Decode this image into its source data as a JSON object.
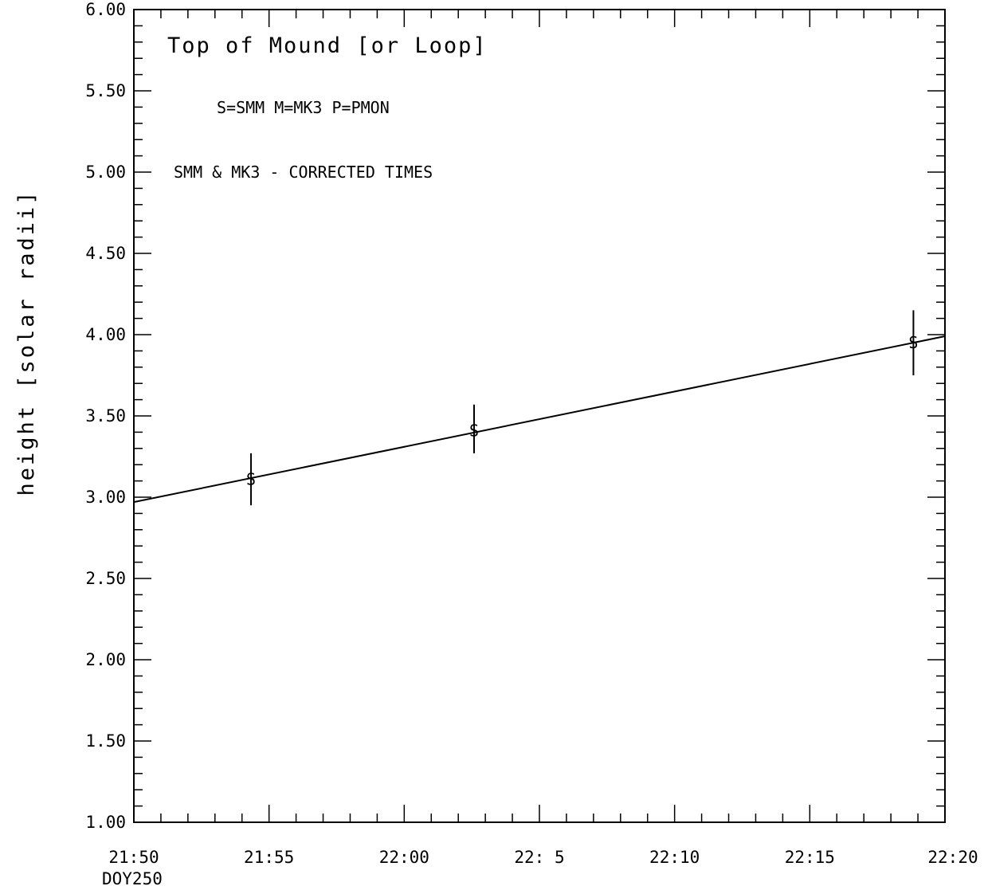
{
  "chart_data": {
    "type": "scatter",
    "title": "Top of Mound  [or Loop]",
    "annotations": [
      "S=SMM  M=MK3  P=PMON",
      "SMM & MK3 - CORRECTED TIMES"
    ],
    "xlabel": "",
    "x_sublabel": "DOY250",
    "ylabel": "height [solar radii]",
    "xlim": [
      "21:50",
      "22:20"
    ],
    "ylim": [
      1.0,
      6.0
    ],
    "x_ticks": [
      "21:50",
      "21:55",
      "22:00",
      "22: 5",
      "22:10",
      "22:15",
      "22:20"
    ],
    "x_tick_labels": [
      "21:50",
      "21:55",
      "22:00",
      "22: 5",
      "22:10",
      "22:15",
      "22:20"
    ],
    "y_ticks": [
      1.0,
      1.5,
      2.0,
      2.5,
      3.0,
      3.5,
      4.0,
      4.5,
      5.0,
      5.5,
      6.0
    ],
    "y_tick_labels": [
      "1.00",
      "1.50",
      "2.00",
      "2.50",
      "3.00",
      "3.50",
      "4.00",
      "4.50",
      "5.00",
      "5.50",
      "6.00"
    ],
    "series": [
      {
        "marker": "S",
        "points": [
          {
            "x": "21:54:20",
            "y": 3.11,
            "y_low": 2.95,
            "y_high": 3.27
          },
          {
            "x": "22:02:35",
            "y": 3.41,
            "y_low": 3.27,
            "y_high": 3.57
          },
          {
            "x": "22:18:50",
            "y": 3.95,
            "y_low": 3.75,
            "y_high": 4.15
          }
        ]
      }
    ],
    "fit_line": {
      "from": {
        "x": "21:50",
        "y": 2.97
      },
      "to": {
        "x": "22:20",
        "y": 3.99
      }
    },
    "grid": false,
    "legend": "none"
  }
}
